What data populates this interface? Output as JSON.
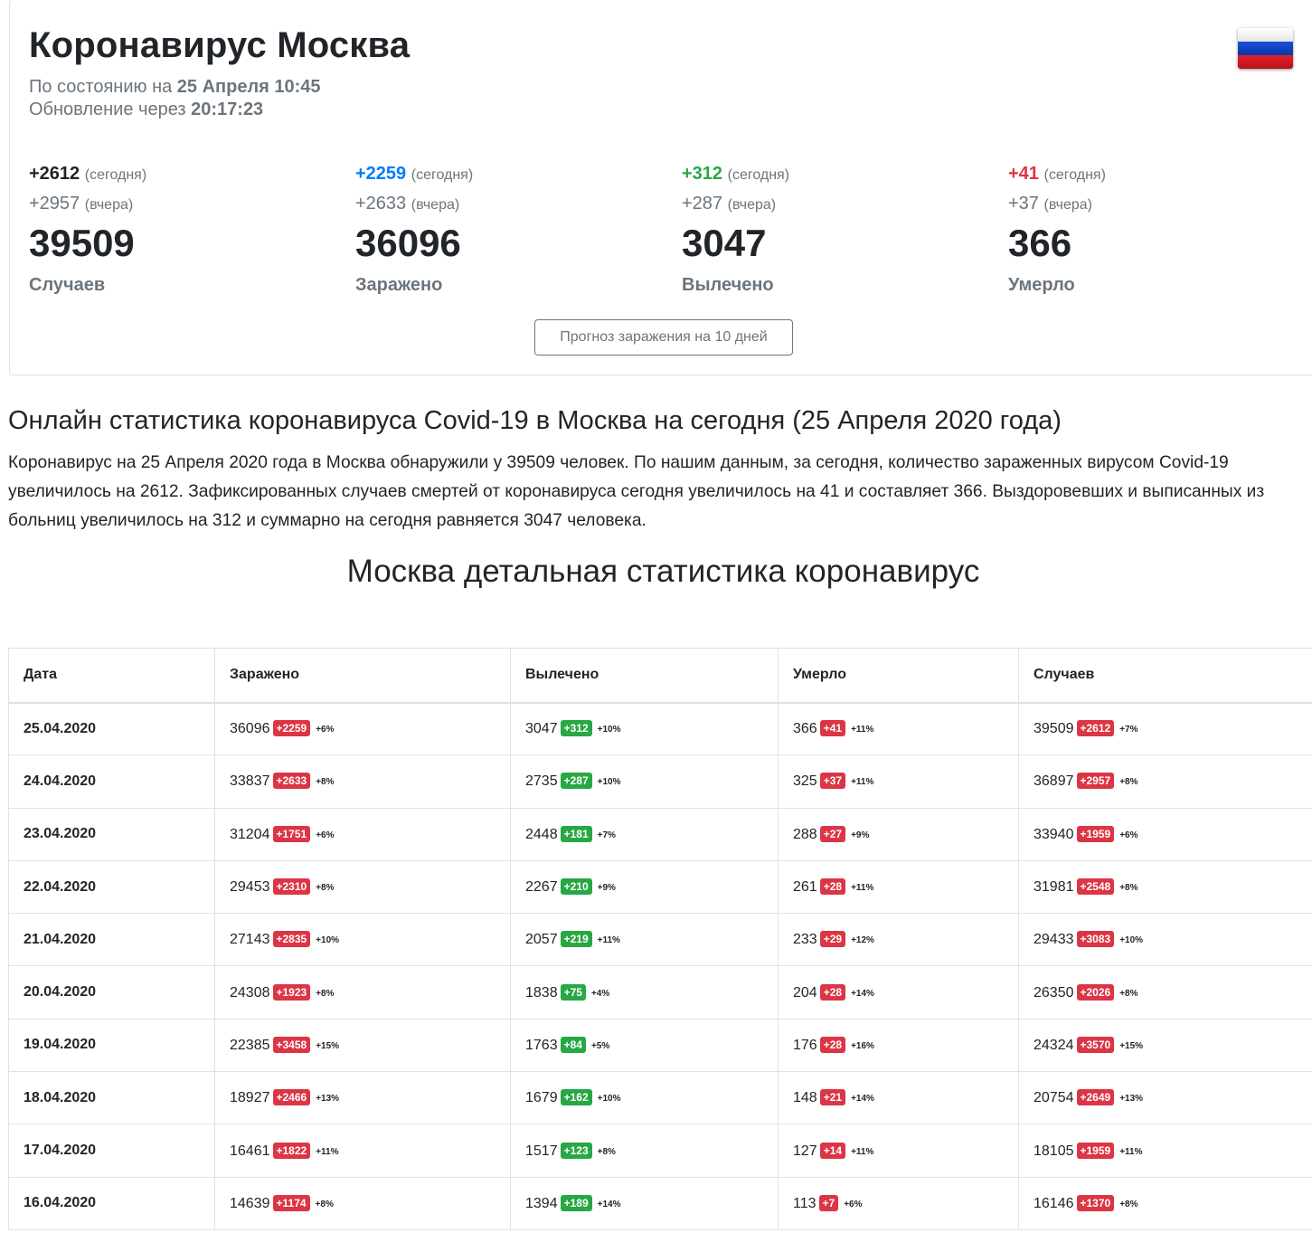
{
  "header": {
    "title": "Коронавирус Москва",
    "status_prefix": "По состоянию на",
    "status_date": "25 Апреля 10:45",
    "update_prefix": "Обновление через",
    "update_time": "20:17:23",
    "flag_icon": "russia-flag-icon"
  },
  "stats": [
    {
      "today": "+2612",
      "today_label": "(сегодня)",
      "yesterday": "+2957",
      "yesterday_label": "(вчера)",
      "total": "39509",
      "label": "Случаев",
      "color": "#212529"
    },
    {
      "today": "+2259",
      "today_label": "(сегодня)",
      "yesterday": "+2633",
      "yesterday_label": "(вчера)",
      "total": "36096",
      "label": "Заражено",
      "color": "#007bff"
    },
    {
      "today": "+312",
      "today_label": "(сегодня)",
      "yesterday": "+287",
      "yesterday_label": "(вчера)",
      "total": "3047",
      "label": "Вылечено",
      "color": "#28a745"
    },
    {
      "today": "+41",
      "today_label": "(сегодня)",
      "yesterday": "+37",
      "yesterday_label": "(вчера)",
      "total": "366",
      "label": "Умерло",
      "color": "#dc3545"
    }
  ],
  "forecast_button": "Прогноз заражения на 10 дней",
  "online_heading": "Онлайн статистика коронавируса Covid-19 в Москва на сегодня (25 Апреля 2020 года)",
  "intro_text": "Коронавирус на 25 Апреля 2020 года в Москва обнаружили у 39509 человек. По нашим данным, за сегодня, количество зараженных вирусом Covid-19 увеличилось на 2612. Зафиксированных случаев смертей от коронавируса сегодня увеличилось на 41 и составляет 366. Выздоровевших и выписанных из больниц увеличилось на 312 и суммарно на сегодня равняется 3047 человека.",
  "detail_heading": "Москва детальная статистика коронавирус",
  "table": {
    "headers": [
      "Дата",
      "Заражено",
      "Вылечено",
      "Умерло",
      "Случаев"
    ],
    "rows": [
      {
        "date": "25.04.2020",
        "inf": "36096",
        "inf_d": "+2259",
        "inf_p": "+6%",
        "rec": "3047",
        "rec_d": "+312",
        "rec_p": "+10%",
        "dead": "366",
        "dead_d": "+41",
        "dead_p": "+11%",
        "cases": "39509",
        "cases_d": "+2612",
        "cases_p": "+7%"
      },
      {
        "date": "24.04.2020",
        "inf": "33837",
        "inf_d": "+2633",
        "inf_p": "+8%",
        "rec": "2735",
        "rec_d": "+287",
        "rec_p": "+10%",
        "dead": "325",
        "dead_d": "+37",
        "dead_p": "+11%",
        "cases": "36897",
        "cases_d": "+2957",
        "cases_p": "+8%"
      },
      {
        "date": "23.04.2020",
        "inf": "31204",
        "inf_d": "+1751",
        "inf_p": "+6%",
        "rec": "2448",
        "rec_d": "+181",
        "rec_p": "+7%",
        "dead": "288",
        "dead_d": "+27",
        "dead_p": "+9%",
        "cases": "33940",
        "cases_d": "+1959",
        "cases_p": "+6%"
      },
      {
        "date": "22.04.2020",
        "inf": "29453",
        "inf_d": "+2310",
        "inf_p": "+8%",
        "rec": "2267",
        "rec_d": "+210",
        "rec_p": "+9%",
        "dead": "261",
        "dead_d": "+28",
        "dead_p": "+11%",
        "cases": "31981",
        "cases_d": "+2548",
        "cases_p": "+8%"
      },
      {
        "date": "21.04.2020",
        "inf": "27143",
        "inf_d": "+2835",
        "inf_p": "+10%",
        "rec": "2057",
        "rec_d": "+219",
        "rec_p": "+11%",
        "dead": "233",
        "dead_d": "+29",
        "dead_p": "+12%",
        "cases": "29433",
        "cases_d": "+3083",
        "cases_p": "+10%"
      },
      {
        "date": "20.04.2020",
        "inf": "24308",
        "inf_d": "+1923",
        "inf_p": "+8%",
        "rec": "1838",
        "rec_d": "+75",
        "rec_p": "+4%",
        "dead": "204",
        "dead_d": "+28",
        "dead_p": "+14%",
        "cases": "26350",
        "cases_d": "+2026",
        "cases_p": "+8%"
      },
      {
        "date": "19.04.2020",
        "inf": "22385",
        "inf_d": "+3458",
        "inf_p": "+15%",
        "rec": "1763",
        "rec_d": "+84",
        "rec_p": "+5%",
        "dead": "176",
        "dead_d": "+28",
        "dead_p": "+16%",
        "cases": "24324",
        "cases_d": "+3570",
        "cases_p": "+15%"
      },
      {
        "date": "18.04.2020",
        "inf": "18927",
        "inf_d": "+2466",
        "inf_p": "+13%",
        "rec": "1679",
        "rec_d": "+162",
        "rec_p": "+10%",
        "dead": "148",
        "dead_d": "+21",
        "dead_p": "+14%",
        "cases": "20754",
        "cases_d": "+2649",
        "cases_p": "+13%"
      },
      {
        "date": "17.04.2020",
        "inf": "16461",
        "inf_d": "+1822",
        "inf_p": "+11%",
        "rec": "1517",
        "rec_d": "+123",
        "rec_p": "+8%",
        "dead": "127",
        "dead_d": "+14",
        "dead_p": "+11%",
        "cases": "18105",
        "cases_d": "+1959",
        "cases_p": "+11%"
      },
      {
        "date": "16.04.2020",
        "inf": "14639",
        "inf_d": "+1174",
        "inf_p": "+8%",
        "rec": "1394",
        "rec_d": "+189",
        "rec_p": "+14%",
        "dead": "113",
        "dead_d": "+7",
        "dead_p": "+6%",
        "cases": "16146",
        "cases_d": "+1370",
        "cases_p": "+8%"
      }
    ]
  }
}
